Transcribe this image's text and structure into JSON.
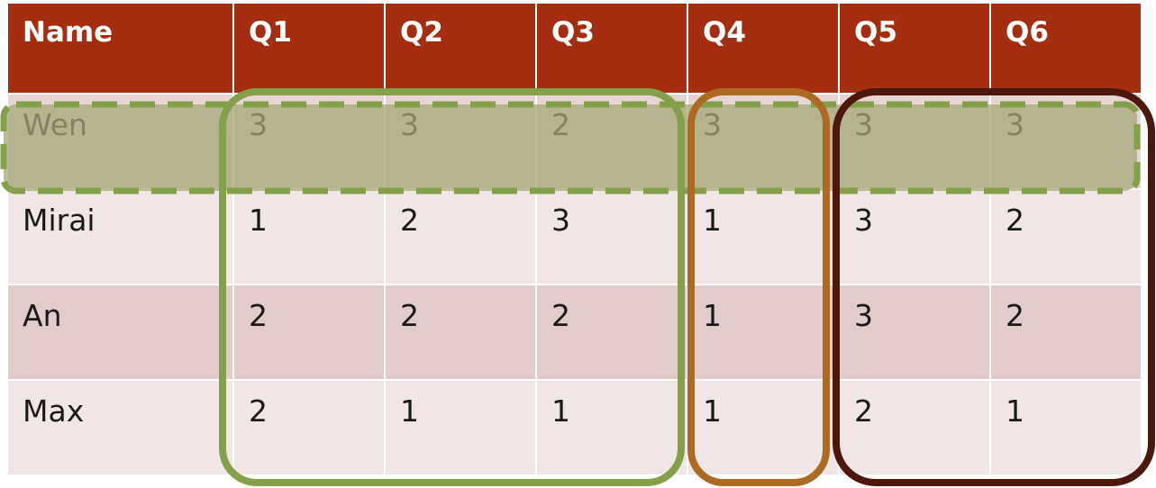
{
  "table": {
    "headers": [
      "Name",
      "Q1",
      "Q2",
      "Q3",
      "Q4",
      "Q5",
      "Q6"
    ],
    "rows": [
      {
        "name": "Wen",
        "values": [
          "3",
          "3",
          "2",
          "3",
          "3",
          "3"
        ]
      },
      {
        "name": "Mirai",
        "values": [
          "1",
          "2",
          "3",
          "1",
          "3",
          "2"
        ]
      },
      {
        "name": "An",
        "values": [
          "2",
          "2",
          "2",
          "1",
          "3",
          "2"
        ]
      },
      {
        "name": "Max",
        "values": [
          "2",
          "1",
          "1",
          "1",
          "2",
          "1"
        ]
      }
    ]
  },
  "colors": {
    "header_bg": "#a52e10",
    "row_light": "#f0e6e5",
    "row_dark": "#e1cccb",
    "highlight_green": "#84a04a",
    "highlight_orange": "#ad6a22",
    "highlight_brown": "#4e170c",
    "row_highlight_fill": "#a5a877"
  }
}
